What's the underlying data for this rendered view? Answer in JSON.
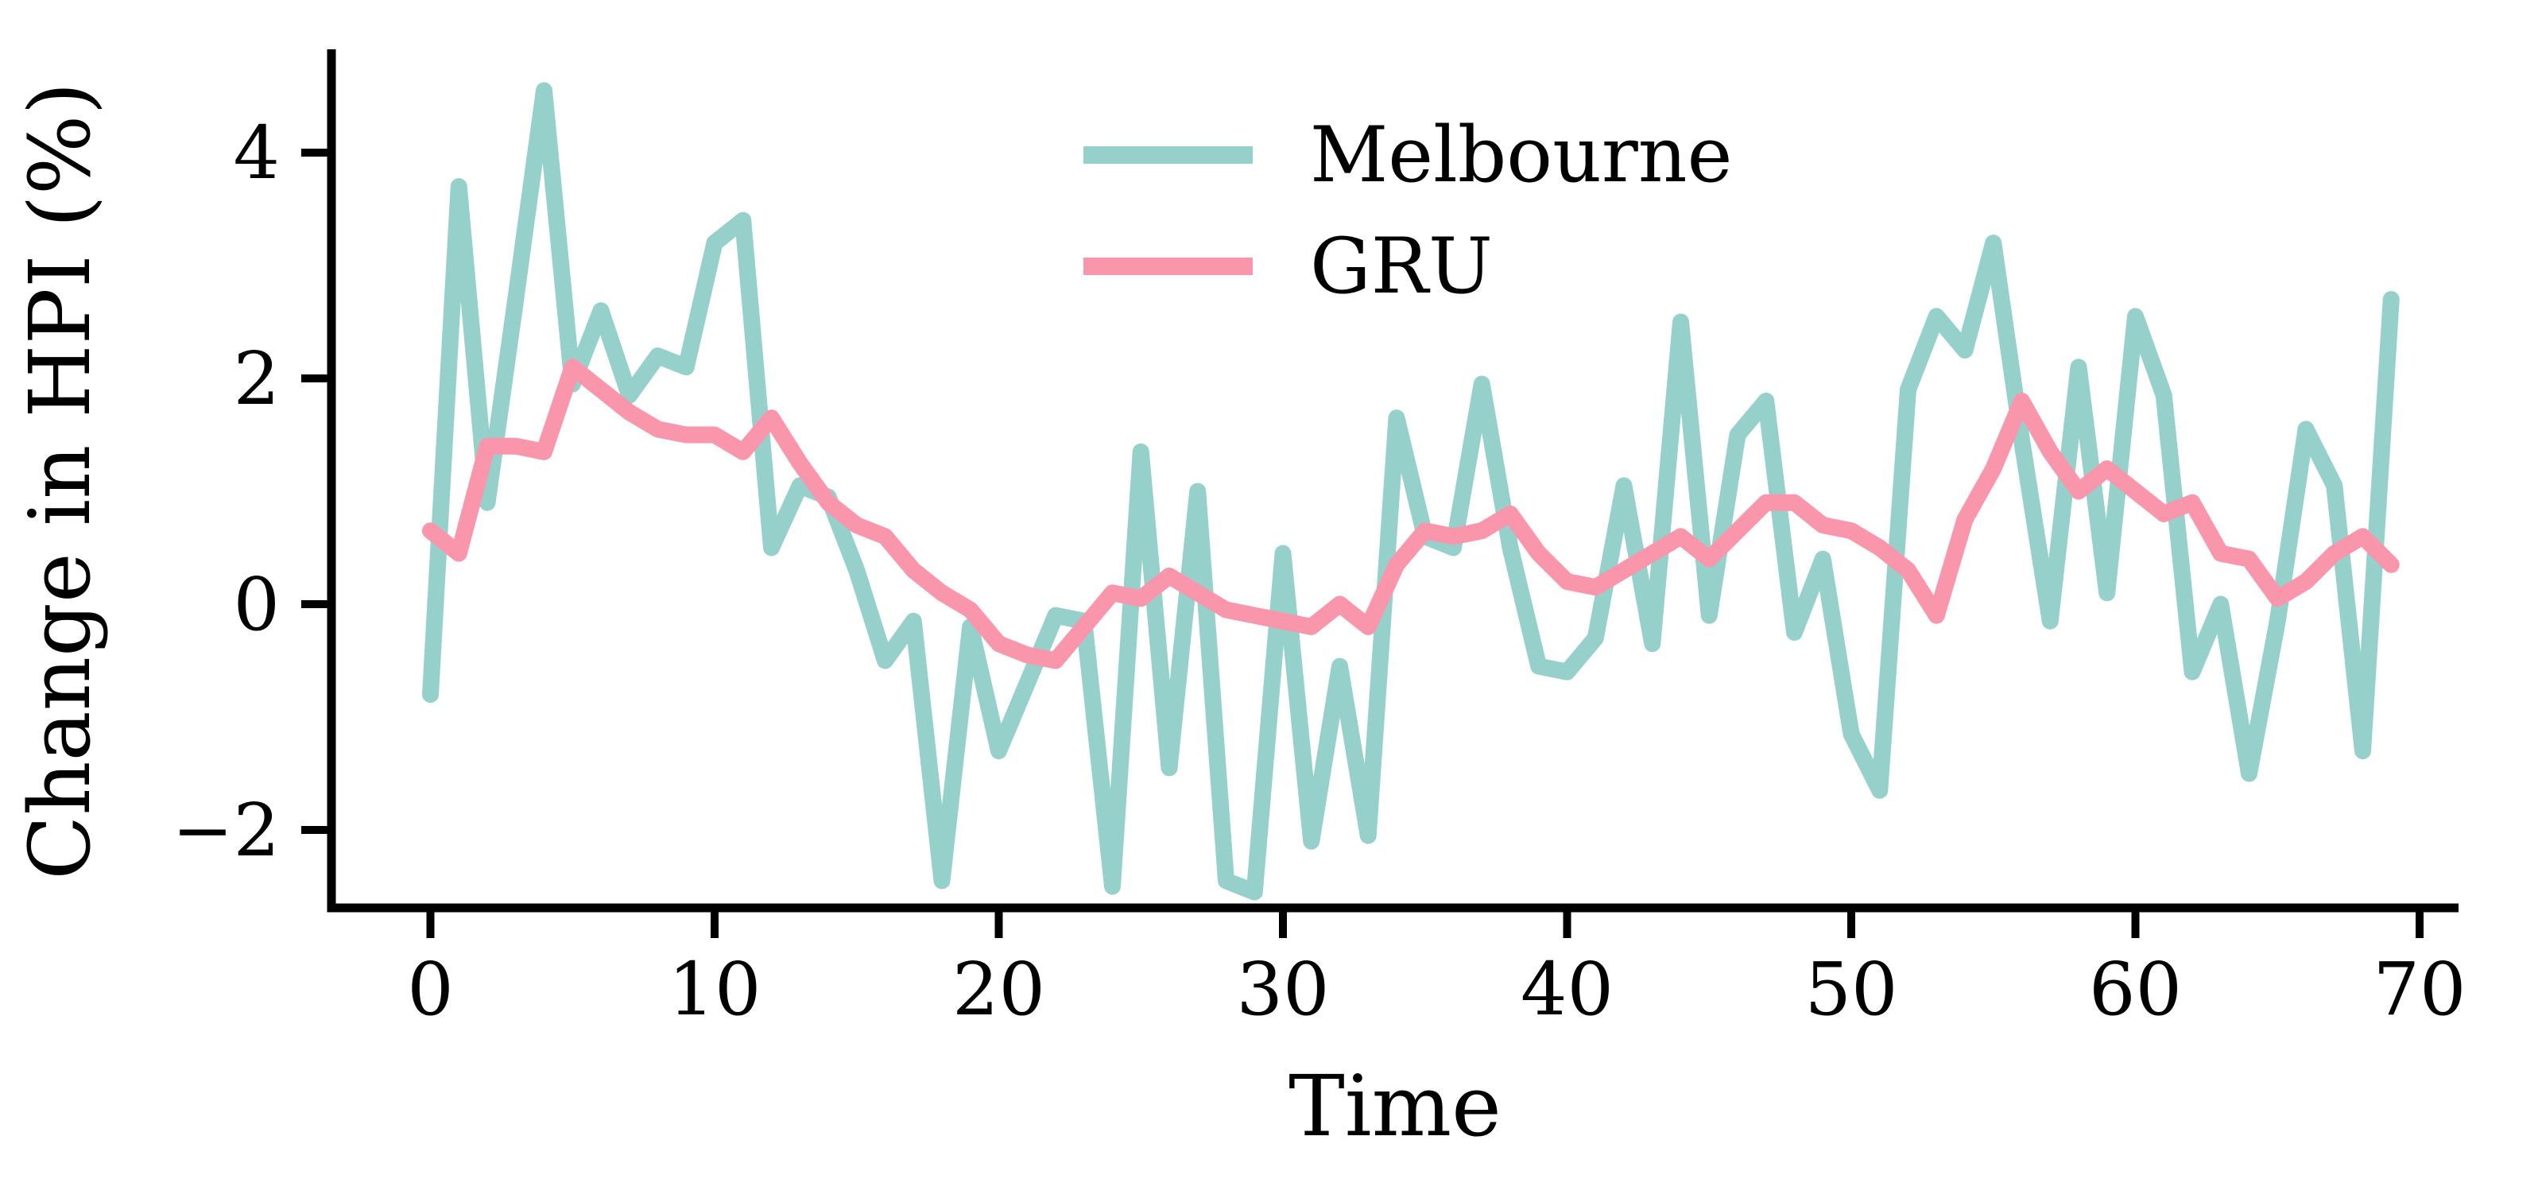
{
  "chart_data": {
    "type": "line",
    "title": "",
    "xlabel": "Time",
    "ylabel": "Change in HPI (%)",
    "x_ticks": [
      0,
      10,
      20,
      30,
      40,
      50,
      60,
      70
    ],
    "y_ticks": [
      -2,
      0,
      2,
      4
    ],
    "xlim": [
      -3.4,
      71.4
    ],
    "ylim": [
      -2.69,
      4.87
    ],
    "grid": false,
    "legend": {
      "position": "upper center"
    },
    "x": [
      0,
      1,
      2,
      3,
      4,
      5,
      6,
      7,
      8,
      9,
      10,
      11,
      12,
      13,
      14,
      15,
      16,
      17,
      18,
      19,
      20,
      21,
      22,
      23,
      24,
      25,
      26,
      27,
      28,
      29,
      30,
      31,
      32,
      33,
      34,
      35,
      36,
      37,
      38,
      39,
      40,
      41,
      42,
      43,
      44,
      45,
      46,
      47,
      48,
      49,
      50,
      51,
      52,
      53,
      54,
      55,
      56,
      57,
      58,
      59,
      60,
      61,
      62,
      63,
      64,
      65,
      66,
      67,
      68,
      69
    ],
    "series": [
      {
        "name": "Melbourne",
        "color": "#95D1CA",
        "values": [
          -0.8,
          3.7,
          0.9,
          2.7,
          4.55,
          1.95,
          2.6,
          1.85,
          2.2,
          2.1,
          3.2,
          3.4,
          0.5,
          1.05,
          0.95,
          0.3,
          -0.5,
          -0.15,
          -2.45,
          -0.2,
          -1.3,
          -0.7,
          -0.1,
          -0.15,
          -2.5,
          1.35,
          -1.45,
          1.0,
          -2.45,
          -2.55,
          0.45,
          -2.1,
          -0.55,
          -2.05,
          1.65,
          0.6,
          0.5,
          1.95,
          0.5,
          -0.55,
          -0.6,
          -0.3,
          1.05,
          -0.35,
          2.5,
          -0.1,
          1.5,
          1.8,
          -0.25,
          0.4,
          -1.15,
          -1.65,
          1.9,
          2.55,
          2.25,
          3.2,
          1.45,
          -0.15,
          2.1,
          0.1,
          2.55,
          1.85,
          -0.6,
          0.0,
          -1.5,
          -0.15,
          1.55,
          1.05,
          -1.3,
          2.7
        ]
      },
      {
        "name": "GRU",
        "color": "#F996AC",
        "values": [
          0.65,
          0.45,
          1.4,
          1.4,
          1.35,
          2.1,
          1.9,
          1.7,
          1.55,
          1.5,
          1.5,
          1.35,
          1.65,
          1.25,
          0.9,
          0.7,
          0.6,
          0.3,
          0.1,
          -0.05,
          -0.35,
          -0.45,
          -0.5,
          -0.2,
          0.1,
          0.05,
          0.25,
          0.1,
          -0.05,
          -0.1,
          -0.15,
          -0.2,
          0.0,
          -0.2,
          0.35,
          0.65,
          0.6,
          0.65,
          0.8,
          0.45,
          0.2,
          0.15,
          0.3,
          0.45,
          0.6,
          0.4,
          0.65,
          0.9,
          0.9,
          0.7,
          0.65,
          0.5,
          0.3,
          -0.1,
          0.75,
          1.2,
          1.8,
          1.35,
          1.0,
          1.2,
          1.0,
          0.8,
          0.9,
          0.45,
          0.4,
          0.05,
          0.2,
          0.45,
          0.6,
          0.35
        ]
      }
    ]
  },
  "colors": {
    "background": "#ffffff",
    "axis": "#000000",
    "text": "#000000"
  }
}
